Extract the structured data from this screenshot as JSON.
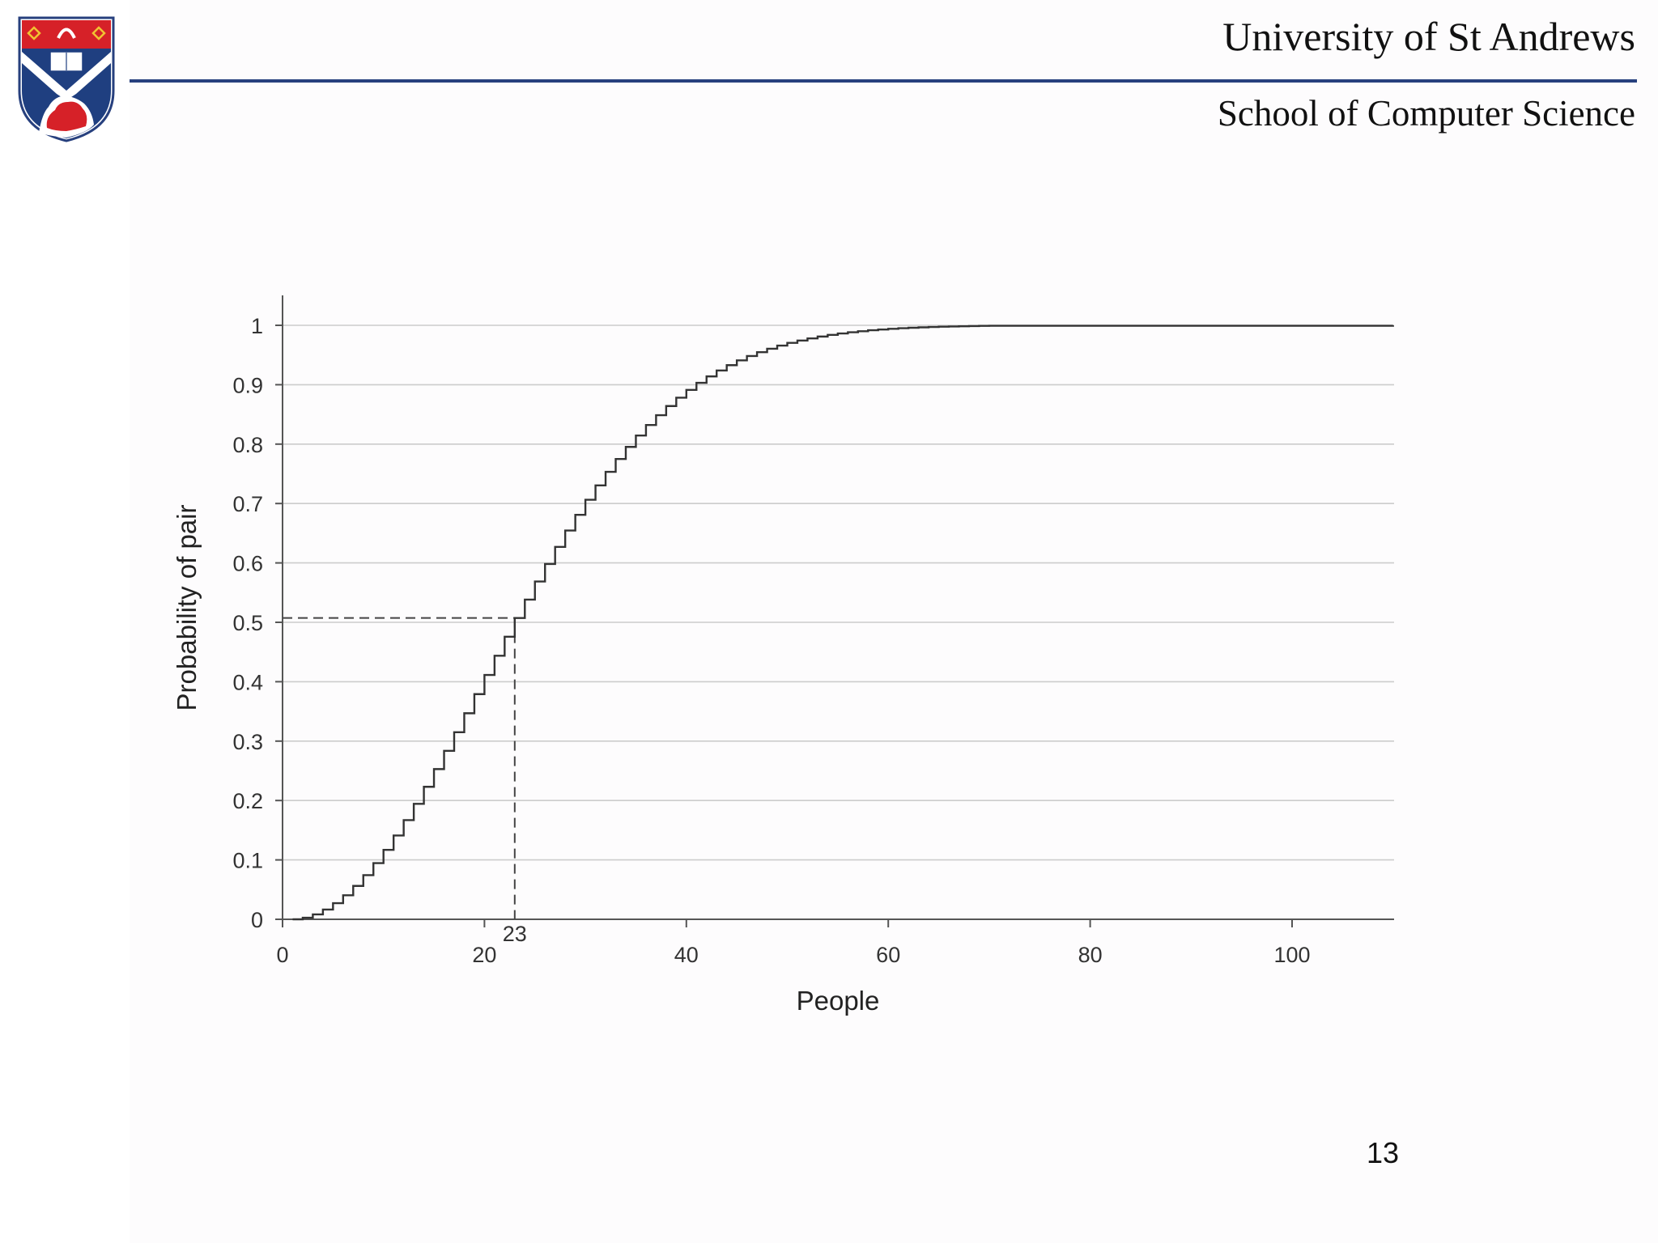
{
  "header": {
    "university": "University of St Andrews",
    "school": "School of Computer Science"
  },
  "slide": {
    "page_number": "13"
  },
  "colors": {
    "header_rule": "#27407e",
    "crest_red": "#d62128",
    "crest_blue": "#1f3f80",
    "curve": "#333333",
    "gridline": "#cccccc"
  },
  "chart_data": {
    "type": "line",
    "style": "step",
    "xlabel": "People",
    "ylabel": "Probability of pair",
    "xlim": [
      0,
      110
    ],
    "ylim": [
      0,
      1
    ],
    "x_ticks": [
      "0",
      "20",
      "40",
      "60",
      "80",
      "100"
    ],
    "y_ticks": [
      "0",
      "0.1",
      "0.2",
      "0.3",
      "0.4",
      "0.5",
      "0.6",
      "0.7",
      "0.8",
      "0.9",
      "1"
    ],
    "grid": "horizontal",
    "legend": "none",
    "annotation": {
      "label": "23",
      "x": 23,
      "y": 0.5073
    },
    "series": [
      {
        "x": [
          1,
          2,
          3,
          4,
          5,
          6,
          7,
          8,
          9,
          10,
          11,
          12,
          13,
          14,
          15,
          16,
          17,
          18,
          19,
          20,
          21,
          22,
          23,
          24,
          25,
          26,
          27,
          28,
          29,
          30,
          31,
          32,
          33,
          34,
          35,
          36,
          37,
          38,
          39,
          40,
          41,
          42,
          43,
          44,
          45,
          46,
          47,
          48,
          49,
          50,
          51,
          52,
          53,
          54,
          55,
          56,
          57,
          58,
          59,
          60,
          61,
          62,
          63,
          64,
          65,
          66,
          67,
          68,
          69,
          70,
          110
        ],
        "y": [
          0,
          0.0027,
          0.0082,
          0.0164,
          0.0271,
          0.0405,
          0.0562,
          0.0743,
          0.0946,
          0.1169,
          0.1411,
          0.167,
          0.1944,
          0.2231,
          0.2529,
          0.2836,
          0.315,
          0.3469,
          0.3791,
          0.4114,
          0.4437,
          0.4757,
          0.5073,
          0.5383,
          0.5687,
          0.5982,
          0.6269,
          0.6545,
          0.681,
          0.7063,
          0.7305,
          0.7533,
          0.775,
          0.7953,
          0.8144,
          0.8322,
          0.8487,
          0.8641,
          0.8782,
          0.8912,
          0.9032,
          0.914,
          0.9239,
          0.9329,
          0.941,
          0.9483,
          0.9548,
          0.9606,
          0.9658,
          0.9704,
          0.9744,
          0.978,
          0.9811,
          0.9839,
          0.9863,
          0.9883,
          0.9901,
          0.9917,
          0.993,
          0.9941,
          0.9951,
          0.9959,
          0.9966,
          0.9972,
          0.9977,
          0.9981,
          0.9984,
          0.9987,
          0.999,
          0.9992,
          1.0
        ]
      }
    ]
  }
}
